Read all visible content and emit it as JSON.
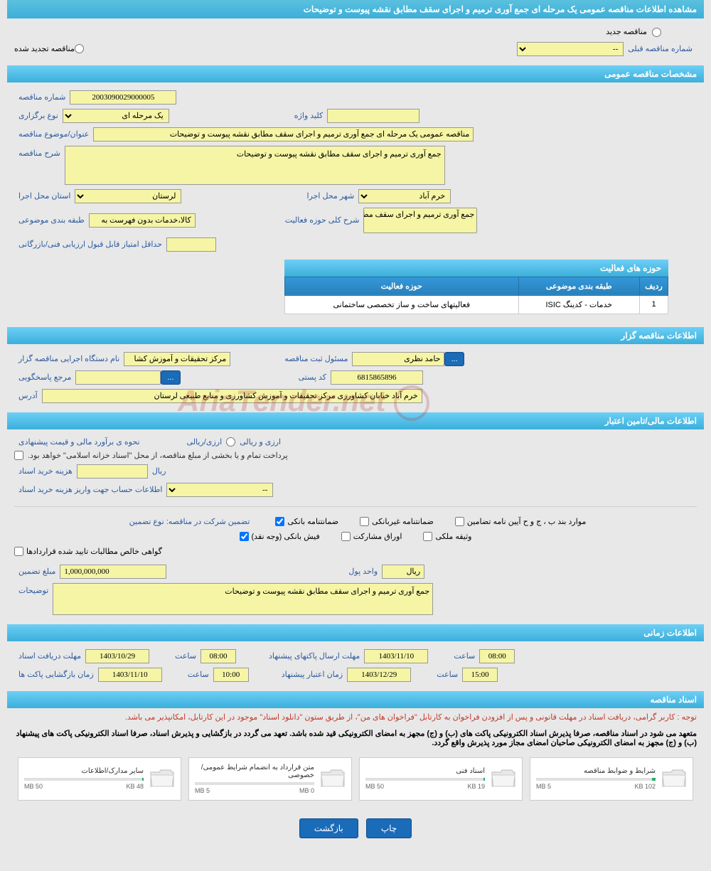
{
  "page_title": "مشاهده اطلاعات مناقصه عمومی یک مرحله ای جمع آوری ترمیم و اجرای سقف مطابق نقشه پیوست و توضیحات",
  "top_radios": {
    "new_tender": "مناقصه جدید",
    "renewed_tender": "مناقصه تجدید شده"
  },
  "prev_tender": {
    "label": "شماره مناقصه قبلی",
    "value": "--"
  },
  "section1": {
    "title": "مشخصات مناقصه عمومی",
    "tender_number": {
      "label": "شماره مناقصه",
      "value": "2003090029000005"
    },
    "type": {
      "label": "نوع برگزاری",
      "value": "یک مرحله ای"
    },
    "keyword": {
      "label": "کلید واژه",
      "value": ""
    },
    "subject": {
      "label": "عنوان/موضوع مناقصه",
      "value": "مناقصه عمومی یک مرحله ای جمع آوری ترمیم و اجرای سقف مطابق نقشه پیوست و توضیحات"
    },
    "description": {
      "label": "شرح مناقصه",
      "value": "جمع آوری ترمیم و اجرای سقف مطابق نقشه پیوست و توضیحات"
    },
    "province": {
      "label": "استان محل اجرا",
      "value": "لرستان"
    },
    "city": {
      "label": "شهر محل اجرا",
      "value": "خرم آباد"
    },
    "category": {
      "label": "طبقه بندی موضوعی",
      "value": "کالا،خدمات بدون فهرست به"
    },
    "activity_desc": {
      "label": "شرح کلی حوزه فعالیت",
      "value": "جمع آوری ترمیم و اجرای سقف مطابق نقشه"
    },
    "min_score": {
      "label": "حداقل امتیاز قابل قبول ارزیابی فنی/بازرگانی",
      "value": ""
    },
    "activity_table": {
      "title": "حوزه های فعالیت",
      "cols": {
        "row": "ردیف",
        "category": "طبقه بندی موضوعی",
        "activity": "حوزه فعالیت"
      },
      "rows": [
        {
          "row": "1",
          "category": "خدمات - کدینگ ISIC",
          "activity": "فعالیتهای ساخت و ساز تخصصی ساختمانی"
        }
      ]
    }
  },
  "section2": {
    "title": "اطلاعات مناقصه گزار",
    "org": {
      "label": "نام دستگاه اجرایی مناقصه گزار",
      "value": "مرکز تحقیقات و آموزش کشا"
    },
    "responsible": {
      "label": "مسئول ثبت مناقصه",
      "value": "حامد نظری"
    },
    "contact": {
      "label": "مرجع پاسخگویی",
      "value": ""
    },
    "postal": {
      "label": "کد پستی",
      "value": "6815865896"
    },
    "address": {
      "label": "آدرس",
      "value": "خرم آباد خیابان کشاورزی مرکز تحقیقات و آموزش کشاورزی و منابع طبیعی لرستان"
    },
    "more_btn": "..."
  },
  "section3": {
    "title": "اطلاعات مالی/تامین اعتبار",
    "method": {
      "label": "نحوه ی برآورد مالی و قیمت پیشنهادی",
      "option": "ارزی/ریالی",
      "unit": "ارزی و ریالی"
    },
    "treasury_note": "پرداخت تمام و یا بخشی از مبلغ مناقصه، از محل \"اسناد خزانه اسلامی\" خواهد بود.",
    "buy_cost": {
      "label": "هزینه خرید اسناد",
      "value": "",
      "unit": "ریال"
    },
    "account_info": {
      "label": "اطلاعات حساب جهت واریز هزینه خرید اسناد",
      "value": "--"
    },
    "guarantee": {
      "label": "تضمین شرکت در مناقصه:‌  نوع تضمین",
      "opts": {
        "bank_guarantee": "ضمانتنامه بانکی",
        "nonbank_guarantee": "ضمانتنامه غیربانکی",
        "items_b_j": "موارد بند ب ، ج و ح آیین نامه تضامین",
        "bank_receipt": "فیش بانکی (وجه نقد)",
        "participation_bonds": "اوراق مشارکت",
        "property_pledge": "وثیقه ملکی",
        "receivables_cert": "گواهی خالص مطالبات تایید شده قراردادها"
      }
    },
    "guarantee_amount": {
      "label": "مبلغ تضمین",
      "value": "1,000,000,000",
      "unit_label": "واحد پول",
      "unit": "ریال"
    },
    "notes": {
      "label": "توضیحات",
      "value": "جمع آوری ترمیم و اجرای سقف مطابق نقشه پیوست و توضیحات"
    }
  },
  "section4": {
    "title": "اطلاعات زمانی",
    "receive_deadline": {
      "label": "مهلت دریافت اسناد",
      "date": "1403/10/29",
      "time_label": "ساعت",
      "time": "08:00"
    },
    "submit_deadline": {
      "label": "مهلت ارسال پاکتهای پیشنهاد",
      "date": "1403/11/10",
      "time_label": "ساعت",
      "time": "08:00"
    },
    "opening": {
      "label": "زمان بازگشایی پاکت ها",
      "date": "1403/11/10",
      "time_label": "ساعت",
      "time": "10:00"
    },
    "validity": {
      "label": "زمان اعتبار پیشنهاد",
      "date": "1403/12/29",
      "time_label": "ساعت",
      "time": "15:00"
    }
  },
  "section5": {
    "title": "اسناد مناقصه",
    "note1": "توجه : کاربر گرامی، دریافت اسناد در مهلت قانونی و پس از افزودن فراخوان به کارتابل \"فراخوان های من\"، از طریق ستون \"دانلود اسناد\" موجود در این کارتابل، امکانپذیر می باشد.",
    "note2": "متعهد می شود در اسناد مناقصه، صرفا پذیرش اسناد الکترونیکی پاکت های (ب) و (ج) مجهز به امضای الکترونیکی قید شده باشد. تعهد می گردد در بازگشایی و پذیرش اسناد، صرفا اسناد الکترونیکی پاکت های پیشنهاد (ب) و (ج) مجهز به امضای الکترونیکی صاحبان امضای مجاز مورد پذیرش واقع گردد.",
    "docs": [
      {
        "title": "شرایط و ضوابط مناقصه",
        "size": "102 KB",
        "max": "5 MB",
        "pct": 3
      },
      {
        "title": "اسناد فنی",
        "size": "19 KB",
        "max": "50 MB",
        "pct": 1
      },
      {
        "title": "متن قرارداد به انضمام شرایط عمومی/خصوصی",
        "size": "0 MB",
        "max": "5 MB",
        "pct": 0
      },
      {
        "title": "سایر مدارک/اطلاعات",
        "size": "48 KB",
        "max": "50 MB",
        "pct": 1
      }
    ]
  },
  "footer": {
    "print": "چاپ",
    "back": "بازگشت"
  },
  "watermark": "AriaTender.net",
  "colors": {
    "header_bg": "#3bafda",
    "yellow": "#f5f5a5",
    "blue_btn": "#1a6bb8",
    "label": "#2c5aa0"
  }
}
